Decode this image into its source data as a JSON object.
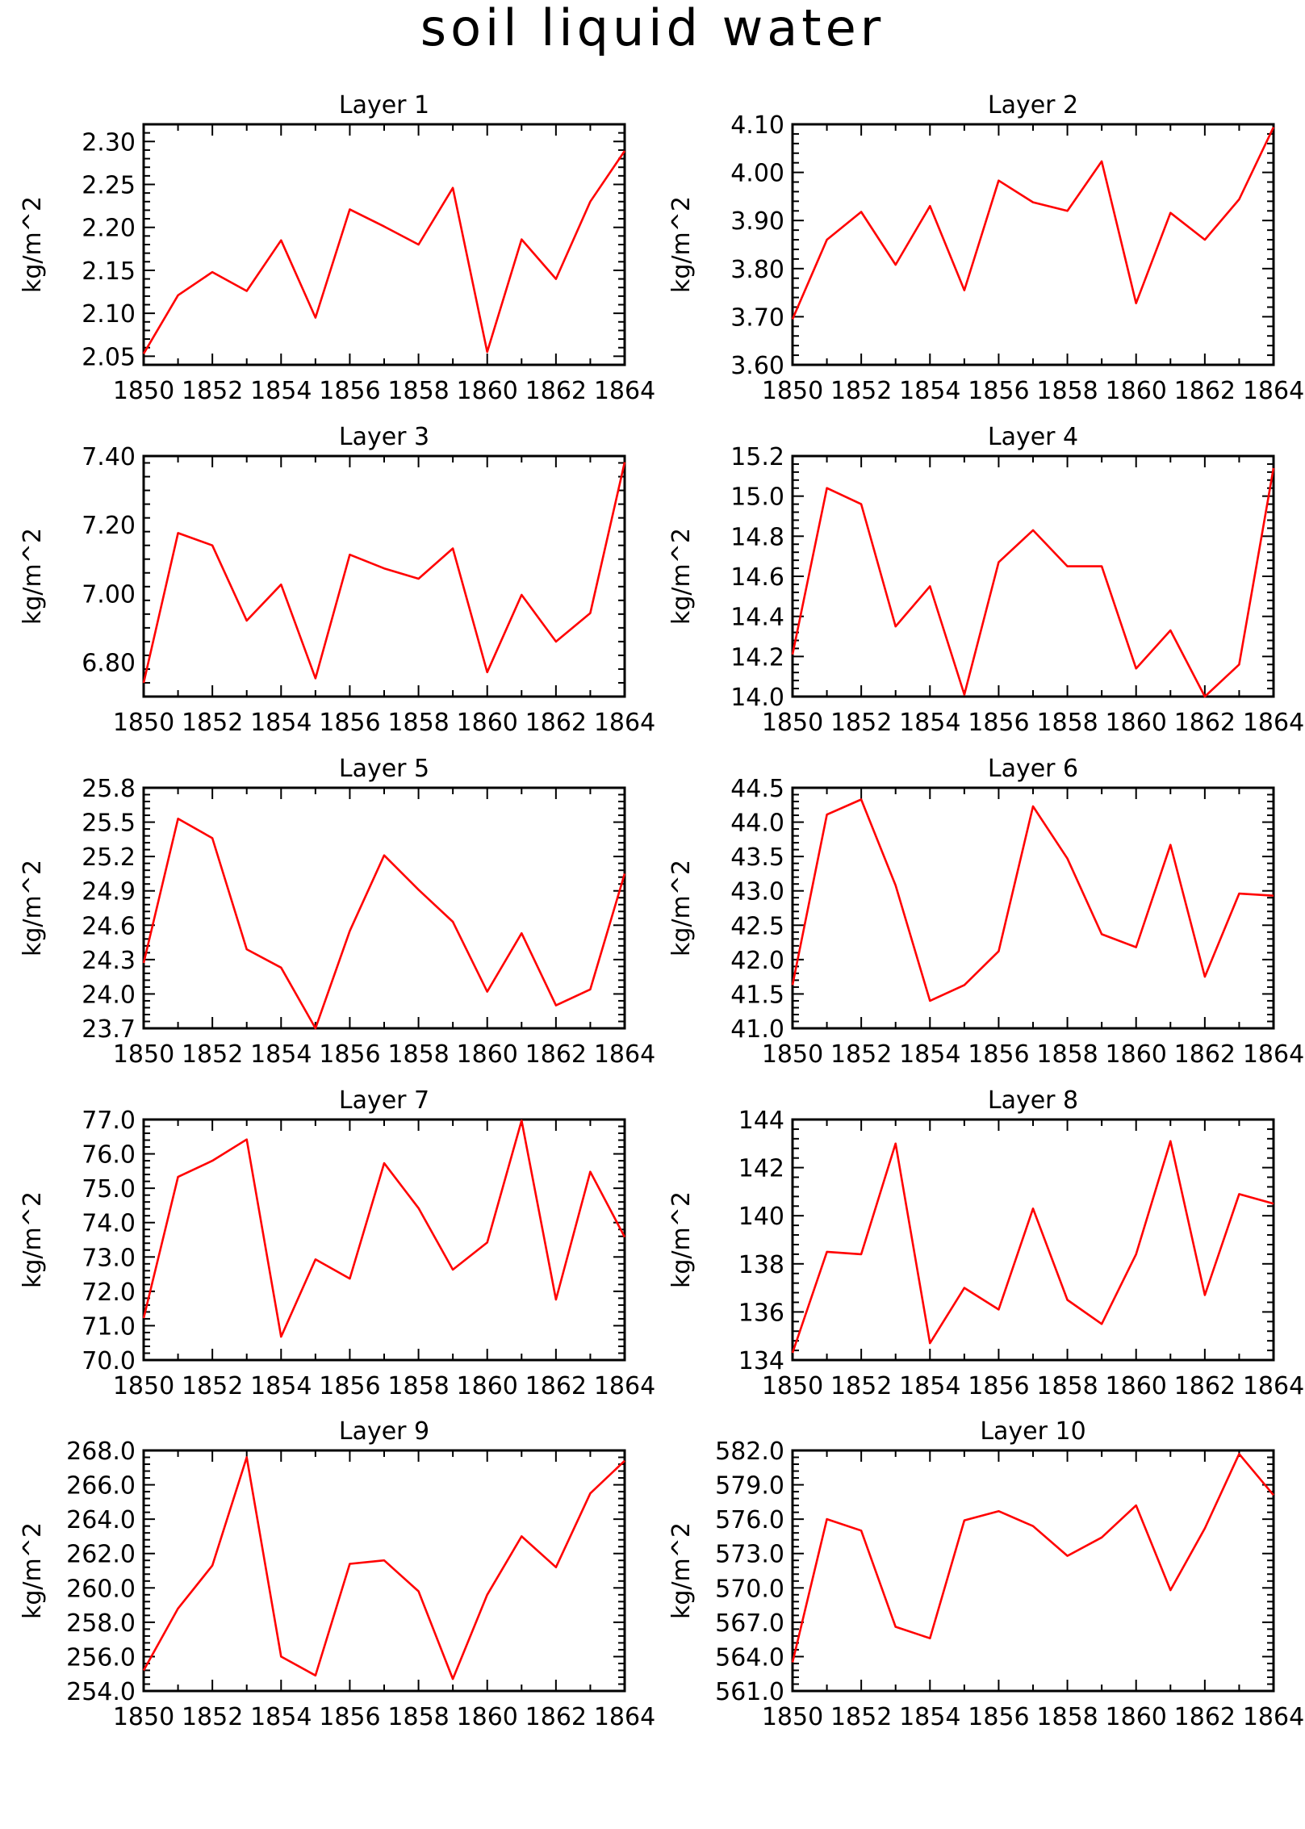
{
  "figure": {
    "title": "soil liquid water",
    "footer": ""
  },
  "colors": {
    "series": "#ff0000",
    "axes": "#000000",
    "background": "#ffffff"
  },
  "chart_data": [
    {
      "type": "line",
      "title": "Layer 1",
      "ylabel": "kg/m^2",
      "xlabel": "",
      "x": [
        1850,
        1851,
        1852,
        1853,
        1854,
        1855,
        1856,
        1857,
        1858,
        1859,
        1860,
        1861,
        1862,
        1863,
        1864
      ],
      "xlim": [
        1850,
        1864
      ],
      "xticks": [
        "1850",
        "1852",
        "1854",
        "1856",
        "1858",
        "1860",
        "1862",
        "1864"
      ],
      "ylim": [
        2.04,
        2.32
      ],
      "yticks": [
        "2.05",
        "2.10",
        "2.15",
        "2.20",
        "2.25",
        "2.30"
      ],
      "series": [
        {
          "values": [
            2.053,
            2.121,
            2.148,
            2.126,
            2.185,
            2.095,
            2.221,
            2.201,
            2.18,
            2.246,
            2.055,
            2.186,
            2.14,
            2.23,
            2.289
          ]
        }
      ]
    },
    {
      "type": "line",
      "title": "Layer 2",
      "ylabel": "kg/m^2",
      "xlabel": "",
      "x": [
        1850,
        1851,
        1852,
        1853,
        1854,
        1855,
        1856,
        1857,
        1858,
        1859,
        1860,
        1861,
        1862,
        1863,
        1864
      ],
      "xlim": [
        1850,
        1864
      ],
      "xticks": [
        "1850",
        "1852",
        "1854",
        "1856",
        "1858",
        "1860",
        "1862",
        "1864"
      ],
      "ylim": [
        3.6,
        4.1
      ],
      "yticks": [
        "3.60",
        "3.70",
        "3.80",
        "3.90",
        "4.00",
        "4.10"
      ],
      "series": [
        {
          "values": [
            3.695,
            3.86,
            3.918,
            3.808,
            3.93,
            3.755,
            3.983,
            3.938,
            3.92,
            4.023,
            3.728,
            3.916,
            3.86,
            3.944,
            4.094
          ]
        }
      ]
    },
    {
      "type": "line",
      "title": "Layer 3",
      "ylabel": "kg/m^2",
      "xlabel": "",
      "x": [
        1850,
        1851,
        1852,
        1853,
        1854,
        1855,
        1856,
        1857,
        1858,
        1859,
        1860,
        1861,
        1862,
        1863,
        1864
      ],
      "xlim": [
        1850,
        1864
      ],
      "xticks": [
        "1850",
        "1852",
        "1854",
        "1856",
        "1858",
        "1860",
        "1862",
        "1864"
      ],
      "ylim": [
        6.7,
        7.4
      ],
      "yticks": [
        "6.80",
        "7.00",
        "7.20",
        "7.40"
      ],
      "series": [
        {
          "values": [
            6.74,
            7.176,
            7.14,
            6.921,
            7.026,
            6.753,
            7.113,
            7.073,
            7.043,
            7.131,
            6.771,
            6.996,
            6.86,
            6.943,
            7.382
          ]
        }
      ]
    },
    {
      "type": "line",
      "title": "Layer 4",
      "ylabel": "kg/m^2",
      "xlabel": "",
      "x": [
        1850,
        1851,
        1852,
        1853,
        1854,
        1855,
        1856,
        1857,
        1858,
        1859,
        1860,
        1861,
        1862,
        1863,
        1864
      ],
      "xlim": [
        1850,
        1864
      ],
      "xticks": [
        "1850",
        "1852",
        "1854",
        "1856",
        "1858",
        "1860",
        "1862",
        "1864"
      ],
      "ylim": [
        14.0,
        15.2
      ],
      "yticks": [
        "14.0",
        "14.2",
        "14.4",
        "14.6",
        "14.8",
        "15.0",
        "15.2"
      ],
      "series": [
        {
          "values": [
            14.21,
            15.04,
            14.96,
            14.35,
            14.55,
            14.01,
            14.67,
            14.83,
            14.65,
            14.65,
            14.14,
            14.33,
            14.0,
            14.16,
            15.14
          ]
        }
      ]
    },
    {
      "type": "line",
      "title": "Layer 5",
      "ylabel": "kg/m^2",
      "xlabel": "",
      "x": [
        1850,
        1851,
        1852,
        1853,
        1854,
        1855,
        1856,
        1857,
        1858,
        1859,
        1860,
        1861,
        1862,
        1863,
        1864
      ],
      "xlim": [
        1850,
        1864
      ],
      "xticks": [
        "1850",
        "1852",
        "1854",
        "1856",
        "1858",
        "1860",
        "1862",
        "1864"
      ],
      "ylim": [
        23.7,
        25.8
      ],
      "yticks": [
        "23.7",
        "24.0",
        "24.3",
        "24.6",
        "24.9",
        "25.2",
        "25.5",
        "25.8"
      ],
      "series": [
        {
          "values": [
            24.27,
            25.53,
            25.36,
            24.39,
            24.23,
            23.7,
            24.55,
            25.21,
            24.91,
            24.63,
            24.02,
            24.53,
            23.9,
            24.04,
            25.05
          ]
        }
      ]
    },
    {
      "type": "line",
      "title": "Layer 6",
      "ylabel": "kg/m^2",
      "xlabel": "",
      "x": [
        1850,
        1851,
        1852,
        1853,
        1854,
        1855,
        1856,
        1857,
        1858,
        1859,
        1860,
        1861,
        1862,
        1863,
        1864
      ],
      "xlim": [
        1850,
        1864
      ],
      "xticks": [
        "1850",
        "1852",
        "1854",
        "1856",
        "1858",
        "1860",
        "1862",
        "1864"
      ],
      "ylim": [
        41.0,
        44.5
      ],
      "yticks": [
        "41.0",
        "41.5",
        "42.0",
        "42.5",
        "43.0",
        "43.5",
        "44.0",
        "44.5"
      ],
      "series": [
        {
          "values": [
            41.63,
            44.11,
            44.33,
            43.08,
            41.4,
            41.63,
            42.12,
            44.23,
            43.47,
            42.37,
            42.18,
            43.67,
            41.75,
            42.96,
            42.93
          ]
        }
      ]
    },
    {
      "type": "line",
      "title": "Layer 7",
      "ylabel": "kg/m^2",
      "xlabel": "",
      "x": [
        1850,
        1851,
        1852,
        1853,
        1854,
        1855,
        1856,
        1857,
        1858,
        1859,
        1860,
        1861,
        1862,
        1863,
        1864
      ],
      "xlim": [
        1850,
        1864
      ],
      "xticks": [
        "1850",
        "1852",
        "1854",
        "1856",
        "1858",
        "1860",
        "1862",
        "1864"
      ],
      "ylim": [
        70.0,
        77.0
      ],
      "yticks": [
        "70.0",
        "71.0",
        "72.0",
        "73.0",
        "74.0",
        "75.0",
        "76.0",
        "77.0"
      ],
      "series": [
        {
          "values": [
            71.22,
            75.33,
            75.8,
            76.42,
            70.68,
            72.93,
            72.37,
            75.73,
            74.42,
            72.63,
            73.42,
            76.97,
            71.76,
            75.48,
            73.58
          ]
        }
      ]
    },
    {
      "type": "line",
      "title": "Layer 8",
      "ylabel": "kg/m^2",
      "xlabel": "",
      "x": [
        1850,
        1851,
        1852,
        1853,
        1854,
        1855,
        1856,
        1857,
        1858,
        1859,
        1860,
        1861,
        1862,
        1863,
        1864
      ],
      "xlim": [
        1850,
        1864
      ],
      "xticks": [
        "1850",
        "1852",
        "1854",
        "1856",
        "1858",
        "1860",
        "1862",
        "1864"
      ],
      "ylim": [
        134,
        144
      ],
      "yticks": [
        "134",
        "136",
        "138",
        "140",
        "142",
        "144"
      ],
      "series": [
        {
          "values": [
            134.3,
            138.5,
            138.4,
            143.0,
            134.7,
            137.0,
            136.1,
            140.3,
            136.5,
            135.5,
            138.4,
            143.1,
            136.7,
            140.9,
            140.5
          ]
        }
      ]
    },
    {
      "type": "line",
      "title": "Layer 9",
      "ylabel": "kg/m^2",
      "xlabel": "",
      "x": [
        1850,
        1851,
        1852,
        1853,
        1854,
        1855,
        1856,
        1857,
        1858,
        1859,
        1860,
        1861,
        1862,
        1863,
        1864
      ],
      "xlim": [
        1850,
        1864
      ],
      "xticks": [
        "1850",
        "1852",
        "1854",
        "1856",
        "1858",
        "1860",
        "1862",
        "1864"
      ],
      "ylim": [
        254.0,
        268.0
      ],
      "yticks": [
        "254.0",
        "256.0",
        "258.0",
        "260.0",
        "262.0",
        "264.0",
        "266.0",
        "268.0"
      ],
      "series": [
        {
          "values": [
            255.2,
            258.8,
            261.3,
            267.6,
            256.0,
            254.9,
            261.4,
            261.6,
            259.8,
            254.7,
            259.6,
            263.0,
            261.2,
            265.5,
            267.4
          ]
        }
      ]
    },
    {
      "type": "line",
      "title": "Layer 10",
      "ylabel": "kg/m^2",
      "xlabel": "",
      "x": [
        1850,
        1851,
        1852,
        1853,
        1854,
        1855,
        1856,
        1857,
        1858,
        1859,
        1860,
        1861,
        1862,
        1863,
        1864
      ],
      "xlim": [
        1850,
        1864
      ],
      "xticks": [
        "1850",
        "1852",
        "1854",
        "1856",
        "1858",
        "1860",
        "1862",
        "1864"
      ],
      "ylim": [
        561.0,
        582.0
      ],
      "yticks": [
        "561.0",
        "564.0",
        "567.0",
        "570.0",
        "573.0",
        "576.0",
        "579.0",
        "582.0"
      ],
      "series": [
        {
          "values": [
            563.5,
            576.0,
            575.0,
            566.6,
            565.6,
            575.9,
            576.7,
            575.4,
            572.8,
            574.4,
            577.2,
            569.8,
            575.2,
            581.7,
            578.1
          ]
        }
      ]
    }
  ]
}
